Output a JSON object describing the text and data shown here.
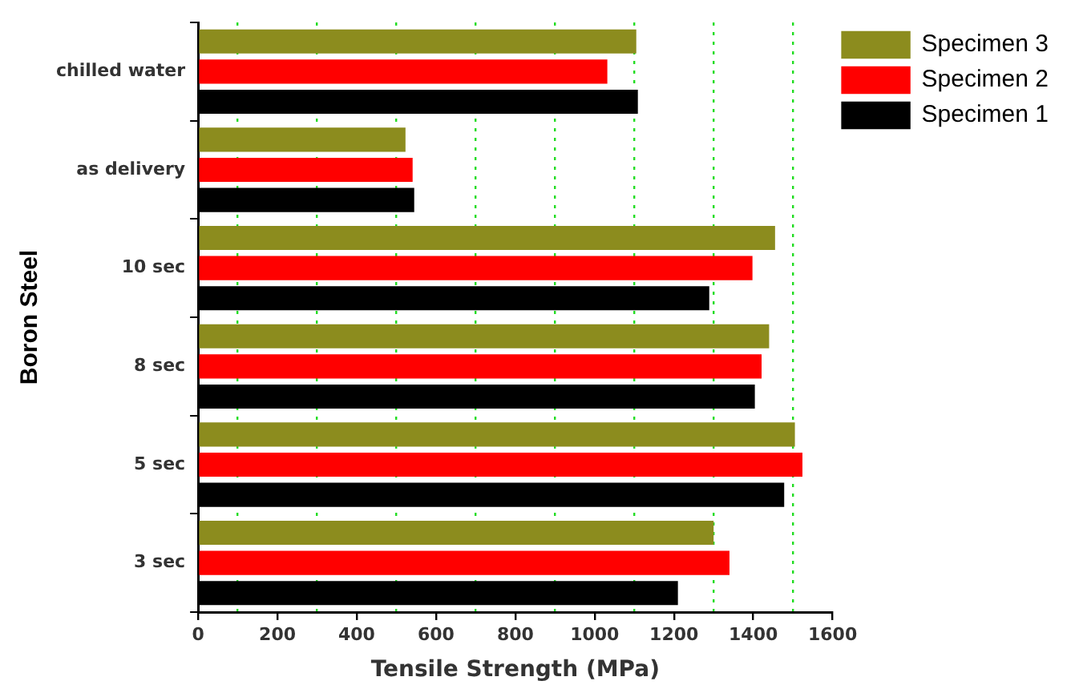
{
  "chart_data": {
    "type": "bar",
    "orientation": "horizontal",
    "xlabel": "Tensile Strength (MPa)",
    "ylabel": "Boron Steel",
    "categories": [
      "chilled water",
      "as delivery",
      "10 sec",
      "8 sec",
      "5 sec",
      "3 sec"
    ],
    "series": [
      {
        "name": "Specimen 3",
        "color": "#8c8c1e",
        "values": [
          1105,
          523,
          1455,
          1440,
          1505,
          1300
        ]
      },
      {
        "name": "Specimen 2",
        "color": "#ff0000",
        "values": [
          1032,
          541,
          1398,
          1421,
          1524,
          1340
        ]
      },
      {
        "name": "Specimen 1",
        "color": "#000000",
        "values": [
          1109,
          545,
          1289,
          1404,
          1478,
          1210
        ]
      }
    ],
    "xlim": [
      0,
      1600
    ],
    "xticks": [
      0,
      {
        "value": 100,
        "label": null
      },
      200,
      {
        "value": 300,
        "label": null
      },
      400,
      {
        "value": 500,
        "label": null
      },
      600,
      {
        "value": 700,
        "label": null
      },
      800,
      {
        "value": 900,
        "label": null
      },
      1000,
      {
        "value": 1100,
        "label": null
      },
      1200,
      {
        "value": 1300,
        "label": null
      },
      1400,
      {
        "value": 1500,
        "label": null
      },
      1600
    ],
    "grid": "x",
    "legend": "top right"
  }
}
